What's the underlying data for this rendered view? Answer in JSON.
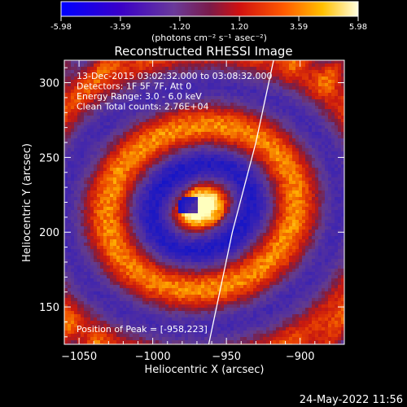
{
  "colorbar": {
    "ticks": [
      "-5.98",
      "-3.59",
      "-1.20",
      "1.20",
      "3.59",
      "5.98"
    ],
    "range": [
      -5.98,
      5.98
    ],
    "unit_label": "(photons cm⁻² s⁻¹ asec⁻²)"
  },
  "chart_data": {
    "type": "heatmap",
    "title": "Reconstructed RHESSI Image",
    "xlabel": "Heliocentric X (arcsec)",
    "ylabel": "Heliocentric Y (arcsec)",
    "xlim": [
      -1060,
      -870
    ],
    "ylim": [
      125,
      315
    ],
    "x_ticks": [
      -1050,
      -1000,
      -950,
      -900
    ],
    "y_ticks": [
      150,
      200,
      250,
      300
    ],
    "annotations": [
      "13-Dec-2015 03:02:32.000 to 03:08:32.000",
      "Detectors: 1F 5F 7F, Att 0",
      "Energy Range: 3.0 - 6.0 keV",
      "Clean     Total counts: 2.76E+04"
    ],
    "peak_label": "Position of Peak = [-958,223]",
    "peak": {
      "x": -958,
      "y": 223
    },
    "limb_line": [
      [
        -962,
        125
      ],
      [
        -946,
        200
      ],
      [
        -930,
        260
      ],
      [
        -918,
        315
      ]
    ],
    "colormap": "hot-cold diverging (blue-purple-red-yellow-white)"
  },
  "footer": {
    "date": "24-May-2022 11:56"
  }
}
